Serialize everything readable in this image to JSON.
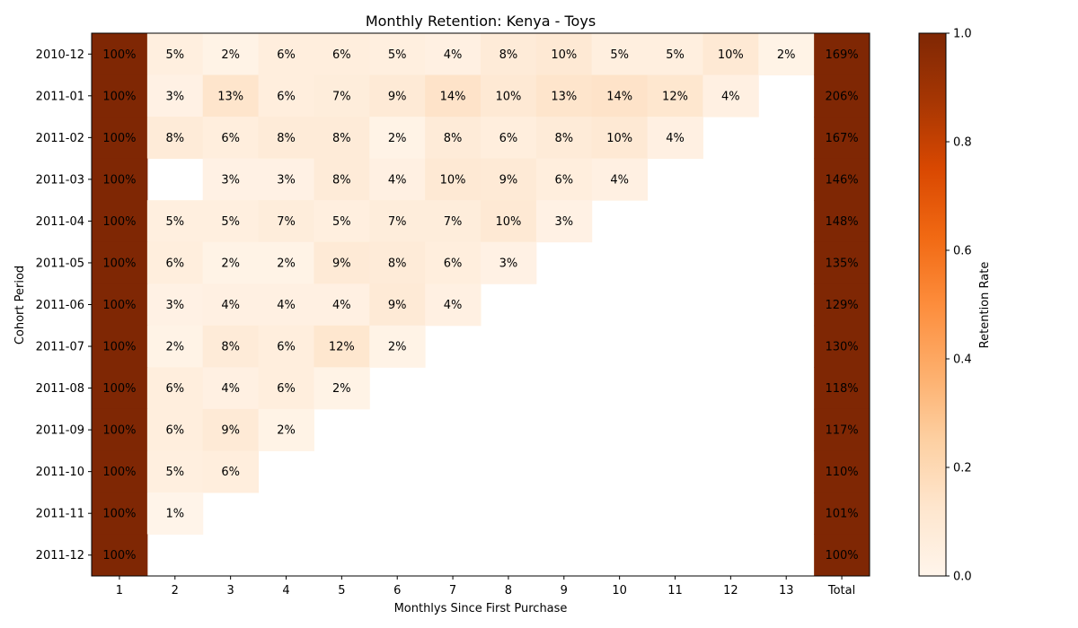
{
  "chart_data": {
    "type": "heatmap",
    "title": "Monthly Retention: Kenya - Toys",
    "xlabel": "Monthlys Since First Purchase",
    "ylabel": "Cohort Period",
    "x_labels": [
      "1",
      "2",
      "3",
      "4",
      "5",
      "6",
      "7",
      "8",
      "9",
      "10",
      "11",
      "12",
      "13",
      "Total"
    ],
    "y_labels": [
      "2010-12",
      "2011-01",
      "2011-02",
      "2011-03",
      "2011-04",
      "2011-05",
      "2011-06",
      "2011-07",
      "2011-08",
      "2011-09",
      "2011-10",
      "2011-11",
      "2011-12"
    ],
    "values": [
      [
        1.0,
        0.05,
        0.02,
        0.06,
        0.06,
        0.05,
        0.04,
        0.08,
        0.1,
        0.05,
        0.05,
        0.1,
        0.02
      ],
      [
        1.0,
        0.03,
        0.13,
        0.06,
        0.07,
        0.09,
        0.14,
        0.1,
        0.13,
        0.14,
        0.12,
        0.04,
        null
      ],
      [
        1.0,
        0.08,
        0.06,
        0.08,
        0.08,
        0.02,
        0.08,
        0.06,
        0.08,
        0.1,
        0.04,
        null,
        null
      ],
      [
        1.0,
        null,
        0.03,
        0.03,
        0.08,
        0.04,
        0.1,
        0.09,
        0.06,
        0.04,
        null,
        null,
        null
      ],
      [
        1.0,
        0.05,
        0.05,
        0.07,
        0.05,
        0.07,
        0.07,
        0.1,
        0.03,
        null,
        null,
        null,
        null
      ],
      [
        1.0,
        0.06,
        0.02,
        0.02,
        0.09,
        0.08,
        0.06,
        0.03,
        null,
        null,
        null,
        null,
        null
      ],
      [
        1.0,
        0.03,
        0.04,
        0.04,
        0.04,
        0.09,
        0.04,
        null,
        null,
        null,
        null,
        null,
        null
      ],
      [
        1.0,
        0.02,
        0.08,
        0.06,
        0.12,
        0.02,
        null,
        null,
        null,
        null,
        null,
        null,
        null
      ],
      [
        1.0,
        0.06,
        0.04,
        0.06,
        0.02,
        null,
        null,
        null,
        null,
        null,
        null,
        null,
        null
      ],
      [
        1.0,
        0.06,
        0.09,
        0.02,
        null,
        null,
        null,
        null,
        null,
        null,
        null,
        null,
        null
      ],
      [
        1.0,
        0.05,
        0.06,
        null,
        null,
        null,
        null,
        null,
        null,
        null,
        null,
        null,
        null
      ],
      [
        1.0,
        0.01,
        null,
        null,
        null,
        null,
        null,
        null,
        null,
        null,
        null,
        null,
        null
      ],
      [
        1.0,
        null,
        null,
        null,
        null,
        null,
        null,
        null,
        null,
        null,
        null,
        null,
        null
      ]
    ],
    "cell_labels": [
      [
        "100%",
        "5%",
        "2%",
        "6%",
        "6%",
        "5%",
        "4%",
        "8%",
        "10%",
        "5%",
        "5%",
        "10%",
        "2%"
      ],
      [
        "100%",
        "3%",
        "13%",
        "6%",
        "7%",
        "9%",
        "14%",
        "10%",
        "13%",
        "14%",
        "12%",
        "4%",
        ""
      ],
      [
        "100%",
        "8%",
        "6%",
        "8%",
        "8%",
        "2%",
        "8%",
        "6%",
        "8%",
        "10%",
        "4%",
        "",
        ""
      ],
      [
        "100%",
        "",
        "3%",
        "3%",
        "8%",
        "4%",
        "10%",
        "9%",
        "6%",
        "4%",
        "",
        "",
        ""
      ],
      [
        "100%",
        "5%",
        "5%",
        "7%",
        "5%",
        "7%",
        "7%",
        "10%",
        "3%",
        "",
        "",
        "",
        ""
      ],
      [
        "100%",
        "6%",
        "2%",
        "2%",
        "9%",
        "8%",
        "6%",
        "3%",
        "",
        "",
        "",
        "",
        ""
      ],
      [
        "100%",
        "3%",
        "4%",
        "4%",
        "4%",
        "9%",
        "4%",
        "",
        "",
        "",
        "",
        "",
        ""
      ],
      [
        "100%",
        "2%",
        "8%",
        "6%",
        "12%",
        "2%",
        "",
        "",
        "",
        "",
        "",
        "",
        ""
      ],
      [
        "100%",
        "6%",
        "4%",
        "6%",
        "2%",
        "",
        "",
        "",
        "",
        "",
        "",
        "",
        ""
      ],
      [
        "100%",
        "6%",
        "9%",
        "2%",
        "",
        "",
        "",
        "",
        "",
        "",
        "",
        "",
        ""
      ],
      [
        "100%",
        "5%",
        "6%",
        "",
        "",
        "",
        "",
        "",
        "",
        "",
        "",
        "",
        ""
      ],
      [
        "100%",
        "1%",
        "",
        "",
        "",
        "",
        "",
        "",
        "",
        "",
        "",
        "",
        ""
      ],
      [
        "100%",
        "",
        "",
        "",
        "",
        "",
        "",
        "",
        "",
        "",
        "",
        "",
        ""
      ]
    ],
    "totals": [
      "169%",
      "206%",
      "167%",
      "146%",
      "148%",
      "135%",
      "129%",
      "130%",
      "118%",
      "117%",
      "110%",
      "101%",
      "100%"
    ],
    "total_values": [
      1.69,
      2.06,
      1.67,
      1.46,
      1.48,
      1.35,
      1.29,
      1.3,
      1.18,
      1.17,
      1.1,
      1.01,
      1.0
    ],
    "colorbar": {
      "label": "Retention Rate",
      "range": [
        0,
        1
      ],
      "ticks": [
        "0.0",
        "0.2",
        "0.4",
        "0.6",
        "0.8",
        "1.0"
      ],
      "colormap": "Oranges",
      "colors": [
        "#fff5eb",
        "#fee6ce",
        "#fdd0a2",
        "#fdae6b",
        "#fd8d3c",
        "#f16913",
        "#d94801",
        "#a63603",
        "#7f2704"
      ]
    }
  }
}
